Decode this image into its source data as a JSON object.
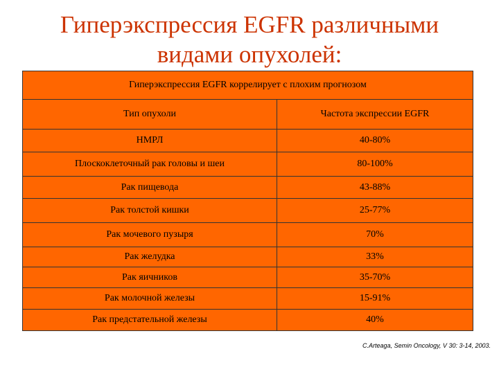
{
  "title": {
    "line1": "Гиперэкспрессия EGFR различными",
    "line2": "видами опухолей:"
  },
  "table": {
    "caption": "Гиперэкспрессия EGFR коррелирует с плохим прогнозом",
    "headers": [
      "Тип опухоли",
      "Частота экспрессии EGFR"
    ],
    "rows": [
      [
        "НМРЛ",
        "40-80%"
      ],
      [
        "Плоскоклеточный рак головы и шеи",
        "80-100%"
      ],
      [
        "Рак пищевода",
        "43-88%"
      ],
      [
        "Рак толстой кишки",
        "25-77%"
      ],
      [
        "Рак мочевого пузыря",
        "70%"
      ],
      [
        "Рак желудка",
        "33%"
      ],
      [
        "Рак яичников",
        "35-70%"
      ],
      [
        "Рак молочной железы",
        "15-91%"
      ],
      [
        "Рак предстательной железы",
        "40%"
      ]
    ]
  },
  "citation": "C.Arteaga, Semin Oncology, V 30: 3-14, 2003.",
  "colors": {
    "title": "#cc3300",
    "table_fill": "#ff6600",
    "grid": "#333333"
  }
}
